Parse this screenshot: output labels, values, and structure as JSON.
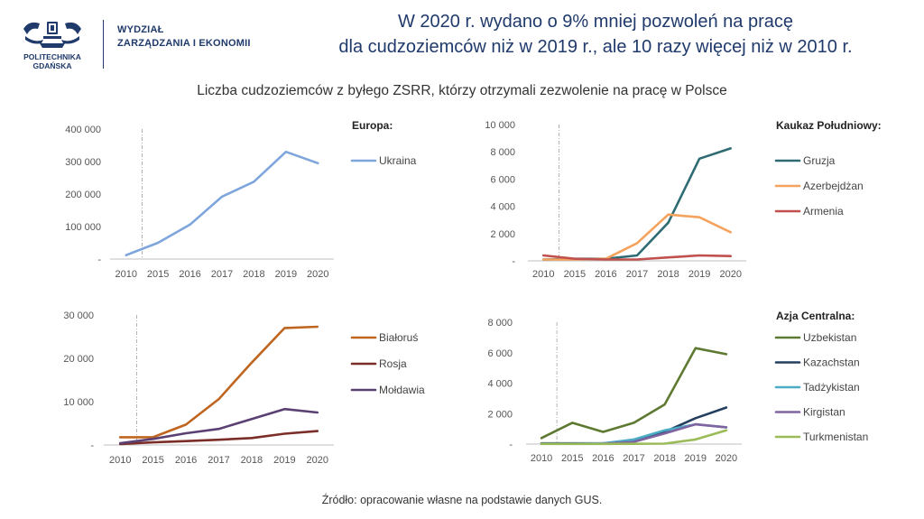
{
  "header": {
    "university": "POLITECHNIKA GDAŃSKA",
    "university_line1": "POLITECHNIKA",
    "university_line2": "GDAŃSKA",
    "department_line1": "WYDZIAŁ",
    "department_line2": "ZARZĄDZANIA I EKONOMII",
    "headline_line1": "W 2020 r. wydano o 9% mniej pozwoleń na pracę",
    "headline_line2": "dla cudzoziemców niż w 2019 r., ale 10 razy więcej niż w 2010 r."
  },
  "subtitle": "Liczba cudzoziemców z byłego ZSRR, którzy otrzymali zezwolenie na pracę w Polsce",
  "source": "Źródło: opracowanie własne na podstawie danych GUS.",
  "colors": {
    "headline": "#1f3a6b",
    "ukraina": "#7ea6dc",
    "gruzja": "#2e6b73",
    "azerbejdzan": "#f5a25d",
    "armenia": "#c0504d",
    "bialorus": "#c0651f",
    "rosja": "#7b2e27",
    "moldawia": "#5b4173",
    "uzbekistan": "#5e7a32",
    "kazachstan": "#243f60",
    "tadzykistan": "#4bacc6",
    "kirgistan": "#8064a2",
    "turkmenistan": "#9bbb59"
  },
  "chart_data": [
    {
      "id": "europa",
      "type": "line",
      "legend_title": "Europa:",
      "categories": [
        "2010",
        "2015",
        "2016",
        "2017",
        "2018",
        "2019",
        "2020"
      ],
      "ylim": [
        0,
        400000
      ],
      "yticks": [
        0,
        100000,
        200000,
        300000,
        400000
      ],
      "ytick_labels": [
        "-",
        "100 000",
        "200 000",
        "300 000",
        "400 000"
      ],
      "series": [
        {
          "name": "Ukraina",
          "color": "#7ea6dc",
          "values": [
            12000,
            50000,
            106000,
            192000,
            238000,
            330000,
            295000
          ]
        }
      ]
    },
    {
      "id": "kaukaz",
      "type": "line",
      "legend_title": "Kaukaz Południowy:",
      "categories": [
        "2010",
        "2015",
        "2016",
        "2017",
        "2018",
        "2019",
        "2020"
      ],
      "ylim": [
        0,
        10000
      ],
      "yticks": [
        0,
        2000,
        4000,
        6000,
        8000,
        10000
      ],
      "ytick_labels": [
        "-",
        "2 000",
        "4 000",
        "6 000",
        "8 000",
        "10 000"
      ],
      "series": [
        {
          "name": "Gruzja",
          "color": "#2e6b73",
          "values": [
            100,
            150,
            150,
            400,
            2800,
            7500,
            8250
          ]
        },
        {
          "name": "Azerbejdżan",
          "color": "#f5a25d",
          "values": [
            100,
            100,
            150,
            1300,
            3400,
            3200,
            2100
          ]
        },
        {
          "name": "Armenia",
          "color": "#c0504d",
          "values": [
            400,
            150,
            100,
            100,
            250,
            400,
            350
          ]
        }
      ]
    },
    {
      "id": "bialorus",
      "type": "line",
      "legend_title": "",
      "categories": [
        "2010",
        "2015",
        "2016",
        "2017",
        "2018",
        "2019",
        "2020"
      ],
      "ylim": [
        0,
        30000
      ],
      "yticks": [
        0,
        10000,
        20000,
        30000
      ],
      "ytick_labels": [
        "-",
        "10 000",
        "20 000",
        "30 000"
      ],
      "series": [
        {
          "name": "Białoruś",
          "color": "#c0651f",
          "values": [
            1800,
            1800,
            4700,
            10600,
            19000,
            27000,
            27300
          ]
        },
        {
          "name": "Rosja",
          "color": "#7b2e27",
          "values": [
            200,
            600,
            900,
            1200,
            1600,
            2600,
            3200
          ]
        },
        {
          "name": "Mołdawia",
          "color": "#5b4173",
          "values": [
            400,
            1400,
            2700,
            3700,
            6000,
            8300,
            7500
          ]
        }
      ]
    },
    {
      "id": "azja",
      "type": "line",
      "legend_title": "Azja Centralna:",
      "categories": [
        "2010",
        "2015",
        "2016",
        "2017",
        "2018",
        "2019",
        "2020"
      ],
      "ylim": [
        0,
        8000
      ],
      "yticks": [
        0,
        2000,
        4000,
        6000,
        8000
      ],
      "ytick_labels": [
        "-",
        "2 000",
        "4 000",
        "6 000",
        "8 000"
      ],
      "series": [
        {
          "name": "Uzbekistan",
          "color": "#5e7a32",
          "values": [
            400,
            1400,
            800,
            1400,
            2600,
            6300,
            5900
          ]
        },
        {
          "name": "Kazachstan",
          "color": "#243f60",
          "values": [
            50,
            50,
            50,
            200,
            800,
            1700,
            2400
          ]
        },
        {
          "name": "Tadżykistan",
          "color": "#4bacc6",
          "values": [
            20,
            20,
            50,
            300,
            900,
            1300,
            1100
          ]
        },
        {
          "name": "Kirgistan",
          "color": "#8064a2",
          "values": [
            20,
            20,
            30,
            150,
            700,
            1300,
            1100
          ]
        },
        {
          "name": "Turkmenistan",
          "color": "#9bbb59",
          "values": [
            10,
            10,
            10,
            20,
            30,
            300,
            900
          ]
        }
      ]
    }
  ]
}
